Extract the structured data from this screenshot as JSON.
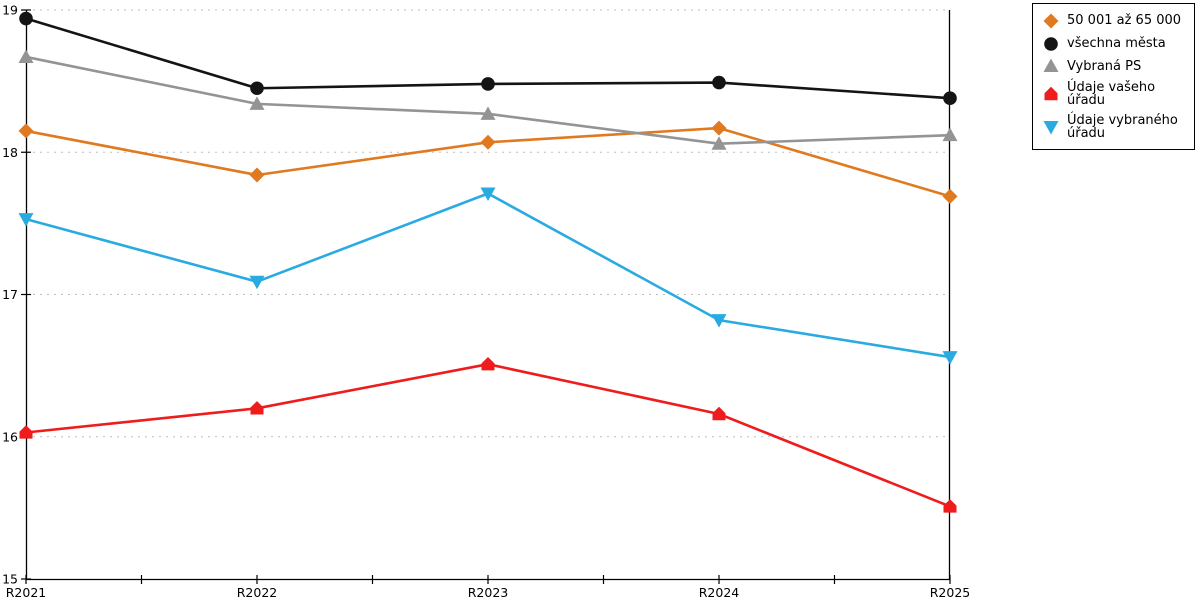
{
  "chart_data": {
    "type": "line",
    "title": "",
    "xlabel": "",
    "ylabel": "",
    "categories": [
      "R2021",
      "R2022",
      "R2023",
      "R2024",
      "R2025"
    ],
    "ylim": [
      15,
      19
    ],
    "yticks": [
      15,
      16,
      17,
      18,
      19
    ],
    "grid": "horizontal dotted gridlines at integer values",
    "legend_position": "top-right, boxed",
    "series": [
      {
        "name": "50 001 až 65 000",
        "marker": "diamond",
        "color": "#E07A20",
        "values": [
          18.15,
          17.84,
          18.07,
          18.17,
          17.69
        ]
      },
      {
        "name": "všechna města",
        "marker": "circle",
        "color": "#141414",
        "values": [
          18.94,
          18.45,
          18.48,
          18.49,
          18.38
        ]
      },
      {
        "name": "Vybraná PS",
        "marker": "triangle-up",
        "color": "#949494",
        "values": [
          18.67,
          18.34,
          18.27,
          18.06,
          18.12
        ]
      },
      {
        "name": "Údaje vašeho úřadu",
        "marker": "pentagon-up",
        "color": "#EE1C1C",
        "values": [
          16.03,
          16.2,
          16.51,
          16.16,
          15.51
        ]
      },
      {
        "name": "Údaje vybraného úřadu",
        "marker": "triangle-down",
        "color": "#29ABE2",
        "values": [
          17.53,
          17.09,
          17.71,
          16.82,
          16.56
        ]
      }
    ],
    "colors": {
      "axis": "#000000",
      "gridline": "#BDBDBD",
      "tick_label": "#000000",
      "background": "#FFFFFF",
      "legend_border": "#000000"
    }
  }
}
